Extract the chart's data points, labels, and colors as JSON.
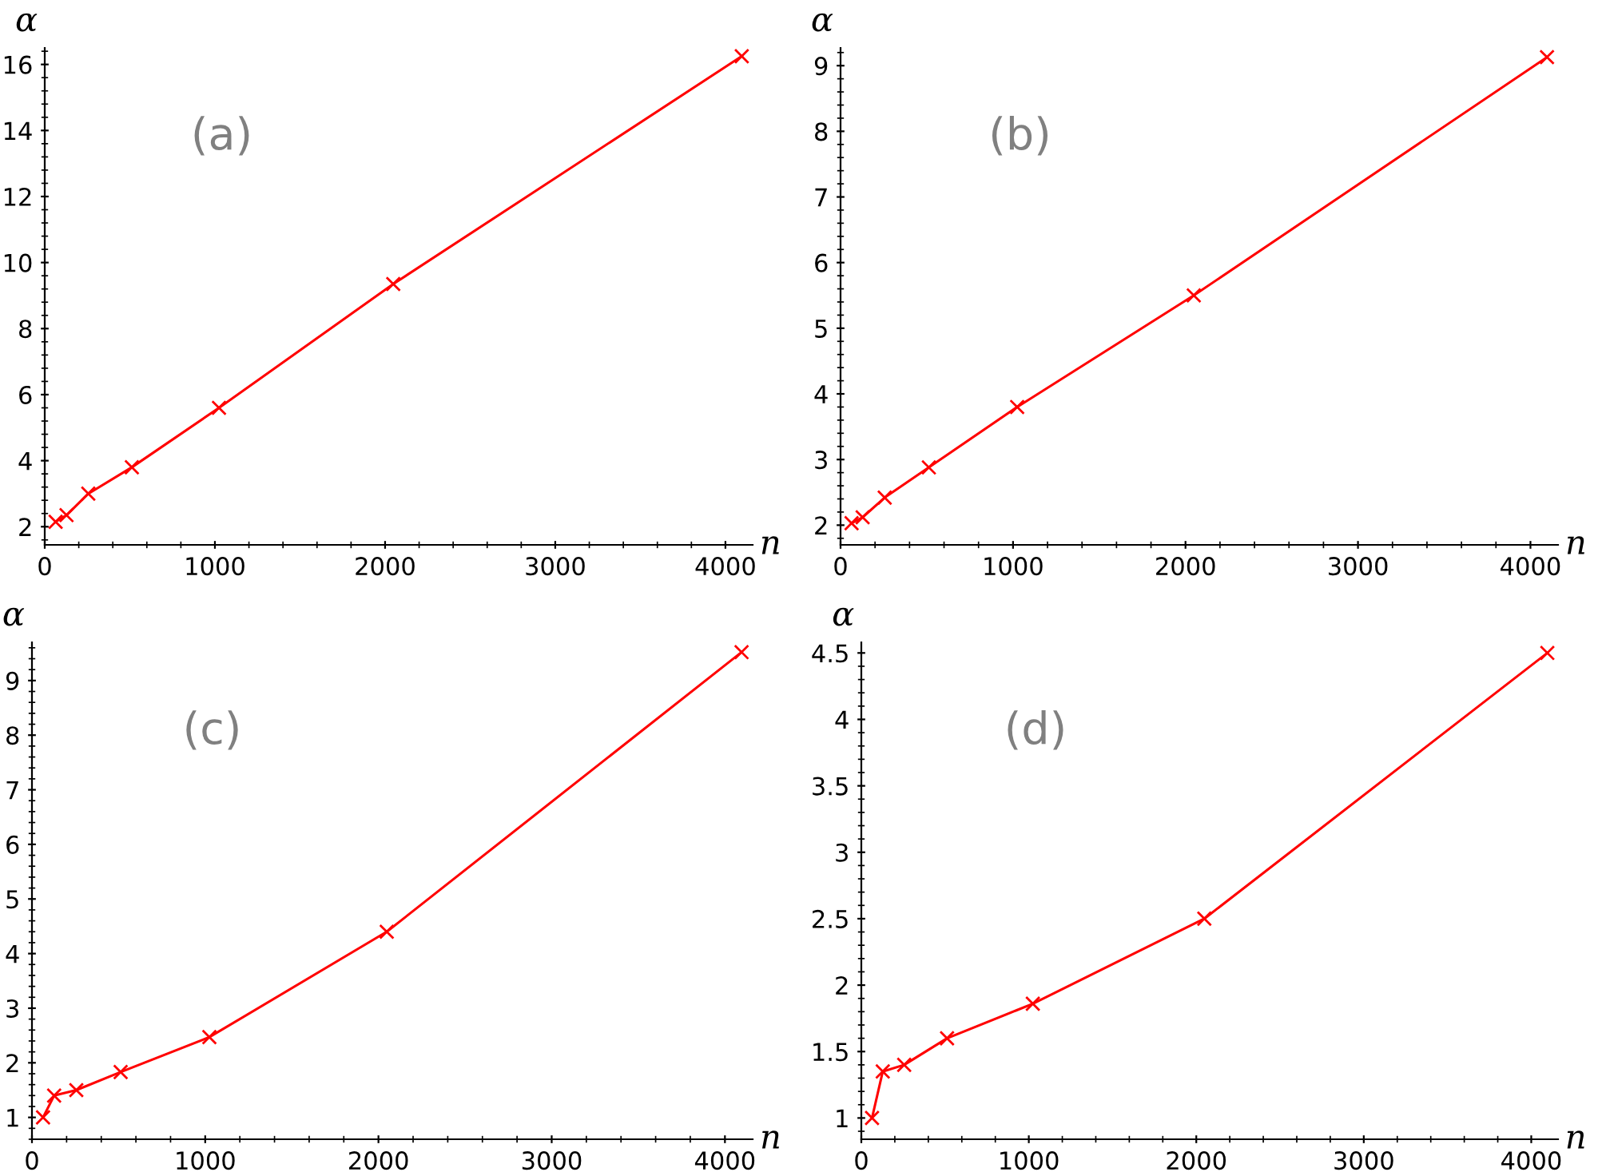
{
  "chart_data": [
    {
      "type": "line",
      "xlabel": "n",
      "ylabel": "α",
      "annotations": [
        "(a)"
      ],
      "x": [
        64,
        128,
        256,
        512,
        1024,
        2048,
        4096
      ],
      "series": [
        {
          "color": "#ff0000",
          "values": [
            2.15,
            2.35,
            3.0,
            3.8,
            5.6,
            9.35,
            16.25
          ]
        }
      ],
      "xlim": [
        0,
        4160
      ],
      "xticks": [
        0,
        1000,
        2000,
        3000,
        4000
      ],
      "ylim": [
        1.45,
        16.5
      ],
      "yticks": [
        2,
        4,
        6,
        8,
        10,
        12,
        14,
        16
      ],
      "marker": "cross",
      "line_style": "solid",
      "grid": false,
      "legend": false
    },
    {
      "type": "line",
      "xlabel": "n",
      "ylabel": "α",
      "annotations": [
        "(b)"
      ],
      "x": [
        64,
        128,
        256,
        512,
        1024,
        2048,
        4096
      ],
      "series": [
        {
          "color": "#ff0000",
          "values": [
            2.03,
            2.12,
            2.42,
            2.88,
            3.8,
            5.5,
            9.13
          ]
        }
      ],
      "xlim": [
        0,
        4160
      ],
      "xticks": [
        0,
        1000,
        2000,
        3000,
        4000
      ],
      "ylim": [
        1.7,
        9.27
      ],
      "yticks": [
        2,
        3,
        4,
        5,
        6,
        7,
        8,
        9
      ],
      "marker": "cross",
      "line_style": "solid",
      "grid": false,
      "legend": false
    },
    {
      "type": "line",
      "xlabel": "n",
      "ylabel": "α",
      "annotations": [
        "(c)"
      ],
      "x": [
        64,
        128,
        256,
        512,
        1024,
        2048,
        4096
      ],
      "series": [
        {
          "color": "#ff0000",
          "values": [
            1.0,
            1.4,
            1.5,
            1.83,
            2.47,
            4.4,
            9.52
          ]
        }
      ],
      "xlim": [
        0,
        4160
      ],
      "xticks": [
        0,
        1000,
        2000,
        3000,
        4000
      ],
      "ylim": [
        0.6,
        9.7
      ],
      "yticks": [
        1,
        2,
        3,
        4,
        5,
        6,
        7,
        8,
        9
      ],
      "marker": "cross",
      "line_style": "solid",
      "grid": false,
      "legend": false
    },
    {
      "type": "line",
      "xlabel": "n",
      "ylabel": "α",
      "annotations": [
        "(d)"
      ],
      "x": [
        64,
        128,
        256,
        512,
        1024,
        2048,
        4096
      ],
      "series": [
        {
          "color": "#ff0000",
          "values": [
            1.0,
            1.35,
            1.4,
            1.6,
            1.86,
            2.5,
            4.5
          ]
        }
      ],
      "xlim": [
        0,
        4160
      ],
      "xticks": [
        0,
        1000,
        2000,
        3000,
        4000
      ],
      "ylim": [
        0.84,
        4.58
      ],
      "yticks": [
        1,
        1.5,
        2,
        2.5,
        3,
        3.5,
        4,
        4.5
      ],
      "marker": "cross",
      "line_style": "solid",
      "grid": false,
      "legend": false
    }
  ]
}
